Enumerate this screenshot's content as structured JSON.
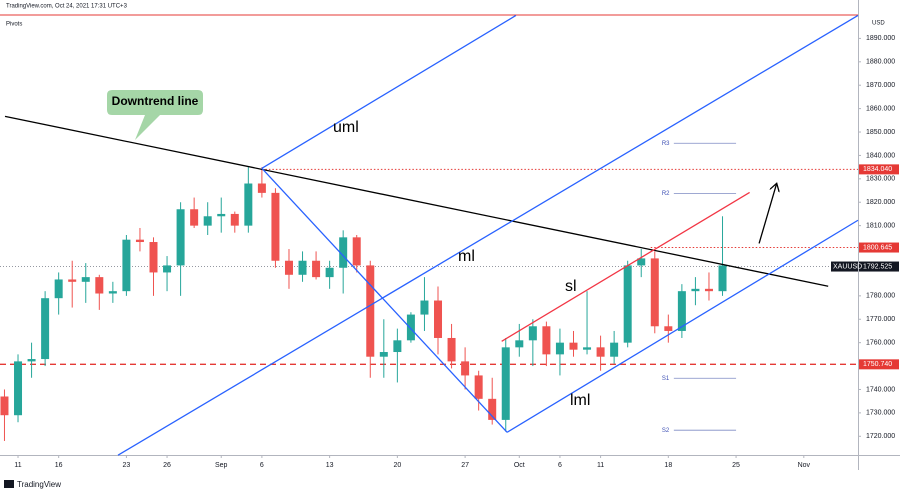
{
  "header": "TradingView.com, Oct 24, 2021 17:31 UTC+3",
  "indicator": "Pivots",
  "currency": "USD",
  "footer": "TradingView",
  "chart_data": {
    "type": "candlestick",
    "symbol": "XAUUSD",
    "callout": "Downtrend line",
    "x": [
      0,
      1,
      2,
      3,
      4,
      5,
      6,
      7,
      8,
      9,
      10,
      11,
      12,
      13,
      14,
      15,
      16,
      17,
      18,
      19,
      20,
      21,
      22,
      23,
      24,
      25,
      26,
      27,
      28,
      29,
      30,
      31,
      32,
      33,
      34,
      35,
      36,
      37,
      38,
      39,
      40,
      41,
      42,
      43,
      44,
      45,
      46,
      47,
      48,
      49,
      50,
      51,
      52,
      53
    ],
    "open": [
      1737,
      1729,
      1752,
      1753,
      1779,
      1787,
      1786,
      1788,
      1781,
      1782,
      1804,
      1803,
      1790,
      1793,
      1817,
      1810,
      1814,
      1815,
      1810,
      1828,
      1824,
      1795,
      1789,
      1795,
      1788,
      1792,
      1805,
      1793,
      1754,
      1756,
      1761,
      1772,
      1778,
      1762,
      1752,
      1746,
      1736,
      1727,
      1758,
      1761,
      1767,
      1755,
      1760,
      1757,
      1758,
      1754,
      1760,
      1793,
      1796,
      1767,
      1765,
      1782,
      1783,
      1782
    ],
    "high": [
      1740,
      1755,
      1760,
      1782,
      1790,
      1795,
      1794,
      1789,
      1786,
      1806,
      1809,
      1805,
      1797,
      1820,
      1822,
      1820,
      1822,
      1816,
      1835,
      1835,
      1826,
      1800,
      1799,
      1799,
      1795,
      1808,
      1806,
      1795,
      1770,
      1766,
      1773,
      1788,
      1784,
      1768,
      1758,
      1748,
      1745,
      1762,
      1768,
      1770,
      1769,
      1766,
      1765,
      1782,
      1763,
      1765,
      1795,
      1800,
      1799,
      1772,
      1785,
      1788,
      1790,
      1814
    ],
    "low": [
      1718,
      1726,
      1745,
      1750,
      1772,
      1775,
      1777,
      1774,
      1777,
      1780,
      1799,
      1780,
      1782,
      1780,
      1809,
      1806,
      1807,
      1807,
      1807,
      1822,
      1792,
      1783,
      1786,
      1787,
      1783,
      1781,
      1790,
      1745,
      1745,
      1743,
      1760,
      1765,
      1755,
      1749,
      1740,
      1731,
      1725,
      1722,
      1754,
      1750,
      1750,
      1746,
      1754,
      1755,
      1748,
      1751,
      1758,
      1788,
      1764,
      1760,
      1762,
      1776,
      1778,
      1780
    ],
    "close": [
      1729,
      1752,
      1753,
      1779,
      1787,
      1786,
      1788,
      1781,
      1782,
      1804,
      1803,
      1790,
      1793,
      1817,
      1810,
      1814,
      1815,
      1810,
      1828,
      1824,
      1795,
      1789,
      1795,
      1788,
      1792,
      1805,
      1793,
      1754,
      1756,
      1761,
      1772,
      1778,
      1762,
      1752,
      1746,
      1736,
      1727,
      1758,
      1761,
      1767,
      1755,
      1760,
      1757,
      1758,
      1754,
      1760,
      1793,
      1796,
      1767,
      1765,
      1782,
      1783,
      1782,
      1793
    ],
    "up_color": "#26a69a",
    "down_color": "#ef5350",
    "xlim": [
      -0.33,
      63
    ],
    "ylim": [
      1712,
      1900
    ],
    "xticks": [
      {
        "value": 1,
        "label": "11"
      },
      {
        "value": 4,
        "label": "16"
      },
      {
        "value": 9,
        "label": "23"
      },
      {
        "value": 12,
        "label": "26"
      },
      {
        "value": 16,
        "label": "Sep"
      },
      {
        "value": 19,
        "label": "6"
      },
      {
        "value": 24,
        "label": "13"
      },
      {
        "value": 29,
        "label": "20"
      },
      {
        "value": 34,
        "label": "27"
      },
      {
        "value": 38,
        "label": "Oct"
      },
      {
        "value": 41,
        "label": "6"
      },
      {
        "value": 44,
        "label": "11"
      },
      {
        "value": 49,
        "label": "18"
      },
      {
        "value": 54,
        "label": "25"
      },
      {
        "value": 59,
        "label": "Nov"
      }
    ],
    "yticks": [
      {
        "value": 1720,
        "label": "1720.000"
      },
      {
        "value": 1730,
        "label": "1730.000"
      },
      {
        "value": 1740,
        "label": "1740.000"
      },
      {
        "value": 1760,
        "label": "1760.000"
      },
      {
        "value": 1770,
        "label": "1770.000"
      },
      {
        "value": 1780,
        "label": "1780.000"
      },
      {
        "value": 1810,
        "label": "1810.000"
      },
      {
        "value": 1820,
        "label": "1820.000"
      },
      {
        "value": 1830,
        "label": "1830.000"
      },
      {
        "value": 1840,
        "label": "1840.000"
      },
      {
        "value": 1850,
        "label": "1850.000"
      },
      {
        "value": 1860,
        "label": "1860.000"
      },
      {
        "value": 1870,
        "label": "1870.000"
      },
      {
        "value": 1880,
        "label": "1880.000"
      },
      {
        "value": 1890,
        "label": "1890.000"
      }
    ],
    "price_tags": [
      {
        "value": 1834.04,
        "label": "1834.040",
        "color": "#e53935",
        "from": 19,
        "style": "dotted"
      },
      {
        "value": 1800.645,
        "label": "1800.645",
        "color": "#e53935",
        "from": 47.7,
        "style": "dotted"
      },
      {
        "value": 1792.525,
        "label": "1792.525",
        "color": "#131722",
        "from": -0.33,
        "style": "dotted-gray"
      },
      {
        "value": 1750.74,
        "label": "1750.740",
        "color": "#e53935",
        "from": -0.33,
        "style": "dashed"
      }
    ],
    "pivot_x": [
      48.3,
      54
    ],
    "pivots": [
      {
        "label": "R3",
        "value": 1845.2
      },
      {
        "label": "R2",
        "value": 1823.8
      },
      {
        "label": "S1",
        "value": 1744.8
      },
      {
        "label": "S2",
        "value": 1722.6
      }
    ],
    "lines": [
      {
        "color": "#000000",
        "x": [
          0.04,
          60.8
        ],
        "y": [
          1856.7,
          1784.1
        ]
      },
      {
        "label": "uml",
        "color": "#2962ff",
        "x": [
          19.0,
          37.75
        ],
        "y": [
          1834.5,
          1899.8
        ]
      },
      {
        "label": "ml",
        "color": "#2962ff",
        "x": [
          8.38,
          63
        ],
        "y": [
          1711.9,
          1899.8
        ]
      },
      {
        "label": "lml",
        "color": "#2962ff",
        "x": [
          37.1,
          63
        ],
        "y": [
          1721.7,
          1812.3
        ]
      },
      {
        "color": "#2962ff",
        "x": [
          19.0,
          37.1
        ],
        "y": [
          1834.5,
          1721.7
        ]
      },
      {
        "label": "sl",
        "color": "#f23645",
        "x": [
          36.7,
          55.0
        ],
        "y": [
          1760.6,
          1824.2
        ]
      },
      {
        "color": "#000000",
        "x": [
          55.7,
          57.0
        ],
        "y": [
          1802.4,
          1828.1
        ],
        "arrow": true
      }
    ]
  }
}
